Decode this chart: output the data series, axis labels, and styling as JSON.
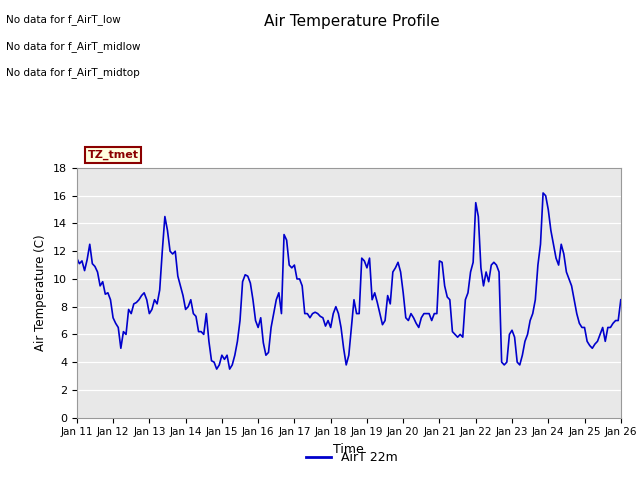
{
  "title": "Air Temperature Profile",
  "xlabel": "Time",
  "ylabel": "Air Temperature (C)",
  "legend_label": "AirT 22m",
  "annotations": [
    "No data for f_AirT_low",
    "No data for f_AirT_midlow",
    "No data for f_AirT_midtop"
  ],
  "tz_label": "TZ_tmet",
  "ylim": [
    0,
    18
  ],
  "yticks": [
    0,
    2,
    4,
    6,
    8,
    10,
    12,
    14,
    16,
    18
  ],
  "x_tick_labels": [
    "Jan 11",
    "Jan 12",
    "Jan 13",
    "Jan 14",
    "Jan 15",
    "Jan 16",
    "Jan 17",
    "Jan 18",
    "Jan 19",
    "Jan 20",
    "Jan 21",
    "Jan 22",
    "Jan 23",
    "Jan 24",
    "Jan 25",
    "Jan 26"
  ],
  "bg_color": "#e8e8e8",
  "line_color": "#0000cc",
  "line_width": 1.2,
  "y_data": [
    11.5,
    11.1,
    11.3,
    10.6,
    11.4,
    12.5,
    11.1,
    10.9,
    10.5,
    9.5,
    9.8,
    8.9,
    9.0,
    8.5,
    7.2,
    6.8,
    6.5,
    5.0,
    6.2,
    6.0,
    7.8,
    7.5,
    8.2,
    8.3,
    8.5,
    8.8,
    9.0,
    8.5,
    7.5,
    7.8,
    8.5,
    8.2,
    9.2,
    12.0,
    14.5,
    13.5,
    12.0,
    11.8,
    12.0,
    10.2,
    9.5,
    8.8,
    7.8,
    8.0,
    8.5,
    7.5,
    7.3,
    6.2,
    6.2,
    6.0,
    7.5,
    5.5,
    4.1,
    4.0,
    3.5,
    3.8,
    4.5,
    4.2,
    4.5,
    3.5,
    3.8,
    4.5,
    5.5,
    7.0,
    9.8,
    10.3,
    10.2,
    9.7,
    8.5,
    7.0,
    6.5,
    7.2,
    5.4,
    4.5,
    4.7,
    6.5,
    7.5,
    8.5,
    9.0,
    7.5,
    13.2,
    12.8,
    11.0,
    10.8,
    11.0,
    10.0,
    10.0,
    9.5,
    7.5,
    7.5,
    7.2,
    7.5,
    7.6,
    7.5,
    7.3,
    7.2,
    6.6,
    7.0,
    6.5,
    7.5,
    8.0,
    7.5,
    6.5,
    5.0,
    3.8,
    4.5,
    6.5,
    8.5,
    7.5,
    7.5,
    11.5,
    11.3,
    10.8,
    11.5,
    8.5,
    9.0,
    8.3,
    7.5,
    6.7,
    7.0,
    8.8,
    8.2,
    10.5,
    10.8,
    11.2,
    10.5,
    9.0,
    7.2,
    7.0,
    7.5,
    7.2,
    6.8,
    6.5,
    7.2,
    7.5,
    7.5,
    7.5,
    7.0,
    7.5,
    7.5,
    11.3,
    11.2,
    9.5,
    8.7,
    8.5,
    6.2,
    6.0,
    5.8,
    6.0,
    5.8,
    8.5,
    9.0,
    10.5,
    11.2,
    15.5,
    14.5,
    10.8,
    9.5,
    10.5,
    9.8,
    11.0,
    11.2,
    11.0,
    10.5,
    4.0,
    3.8,
    4.0,
    6.0,
    6.3,
    5.8,
    4.0,
    3.8,
    4.5,
    5.5,
    6.0,
    7.0,
    7.5,
    8.5,
    11.0,
    12.5,
    16.2,
    16.0,
    15.0,
    13.5,
    12.5,
    11.5,
    11.0,
    12.5,
    11.8,
    10.5,
    10.0,
    9.5,
    8.5,
    7.5,
    6.8,
    6.5,
    6.5,
    5.5,
    5.2,
    5.0,
    5.3,
    5.5,
    6.0,
    6.5,
    5.5,
    6.5,
    6.5,
    6.8,
    7.0,
    7.0,
    8.5
  ]
}
